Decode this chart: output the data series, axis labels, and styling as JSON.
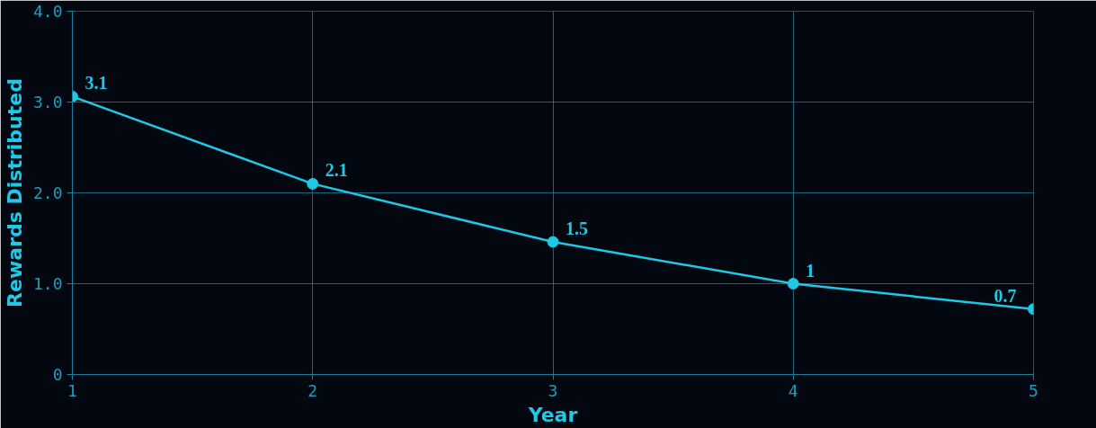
{
  "chart_data": {
    "type": "line",
    "xlabel": "Year",
    "ylabel": "Rewards Distributed",
    "x": [
      1,
      2,
      3,
      4,
      5
    ],
    "series": [
      {
        "color": "#1ec8e6",
        "values": [
          3.06,
          2.1,
          1.46,
          1.0,
          0.72
        ],
        "value_labels": [
          "3.1",
          "2.1",
          "1.5",
          "1",
          "0.7"
        ]
      }
    ],
    "xlim": [
      1,
      5
    ],
    "xticks": [
      1,
      2,
      3,
      4,
      5
    ],
    "ylim": [
      0,
      4
    ],
    "yticks": [
      0,
      {
        "value": 1,
        "label": "1.0"
      },
      {
        "value": 2,
        "label": "2.0"
      },
      {
        "value": 3,
        "label": "3.0"
      },
      {
        "value": 4,
        "label": "4.0"
      }
    ],
    "grid": true,
    "marker": "circle",
    "line_style": "solid"
  }
}
